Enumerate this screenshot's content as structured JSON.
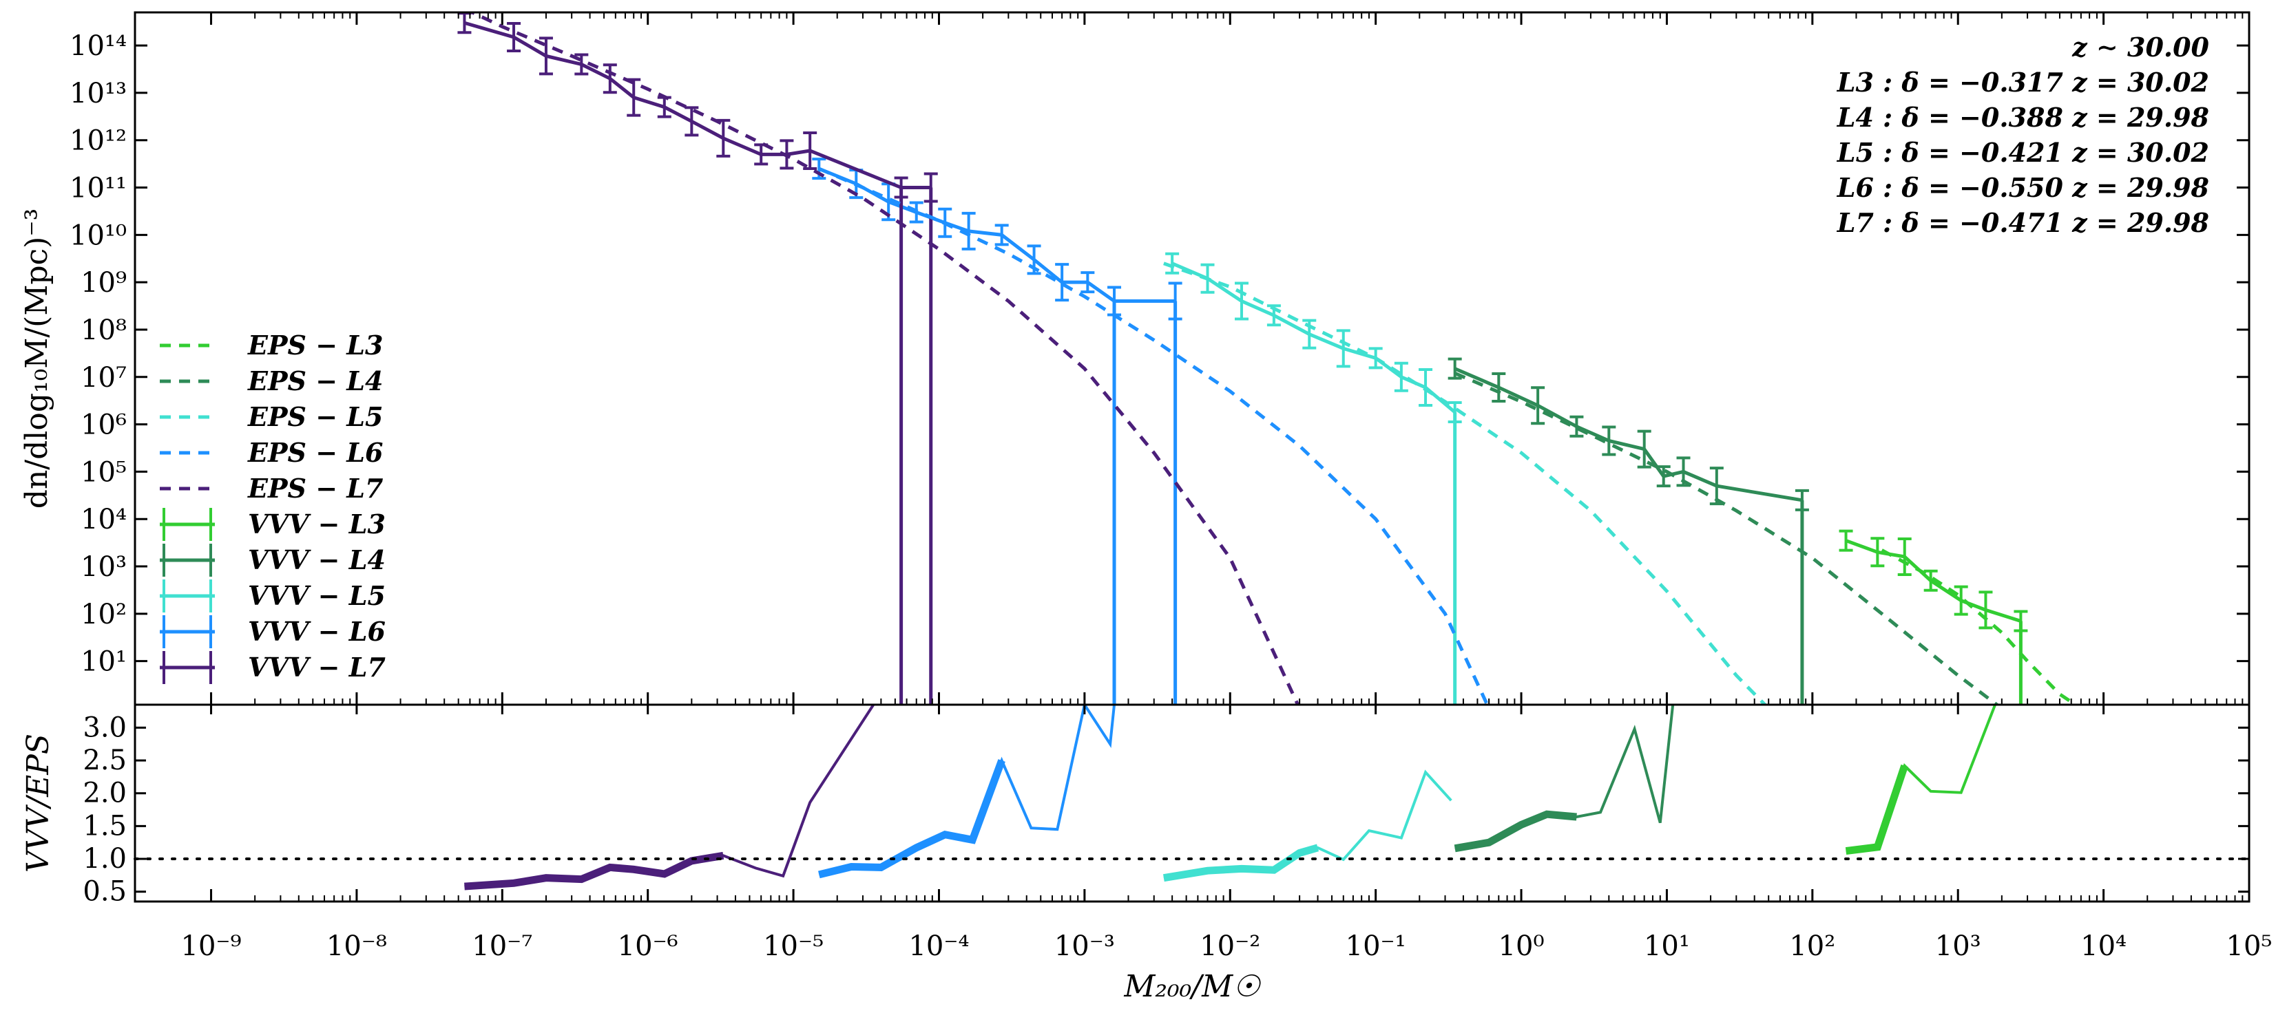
{
  "chart_data": [
    {
      "panel": "main",
      "type": "line",
      "xscale": "log",
      "yscale": "log",
      "xlim": [
        3e-10,
        100000.0
      ],
      "ylim": [
        1.2,
        500000000000000.0
      ],
      "ylabel": "dn/dlog₁₀M/(Mpc)⁻³",
      "ytick_exponents": [
        1,
        2,
        3,
        4,
        5,
        6,
        7,
        8,
        9,
        10,
        11,
        12,
        13,
        14
      ],
      "annotations": [
        "z ∼ 30.00",
        "L3 :  δ = −0.317  z = 30.02",
        "L4 :  δ = −0.388  z = 29.98",
        "L5 :  δ = −0.421  z = 30.02",
        "L6 :  δ = −0.550  z = 29.98",
        "L7 :  δ = −0.471  z = 29.98"
      ],
      "legend": {
        "placement": "left",
        "eps_entries": [
          "EPS − L3",
          "EPS − L4",
          "EPS − L5",
          "EPS − L6",
          "EPS − L7"
        ],
        "vvv_entries": [
          "VVV − L3",
          "VVV − L4",
          "VVV − L5",
          "VVV − L6",
          "VVV − L7"
        ]
      },
      "series": [
        {
          "name": "VVV − L3",
          "color": "#32cd32",
          "style": "solid-errorbar",
          "x": [
            170,
            280,
            430,
            650,
            1050,
            1550,
            2700
          ],
          "y": [
            3500.0,
            2000.0,
            1600.0,
            500.0,
            190.0,
            120.0,
            70
          ],
          "drop_to_floor": [
            2700
          ]
        },
        {
          "name": "VVV − L4",
          "color": "#2e8b57",
          "style": "solid-errorbar",
          "x": [
            0.35,
            0.7,
            1.3,
            2.4,
            4.0,
            7.0,
            9.5,
            13,
            22,
            85
          ],
          "y": [
            15000000.0,
            6000000.0,
            2500000.0,
            900000.0,
            450000.0,
            300000.0,
            80000.0,
            100000.0,
            50000.0,
            25000.0
          ],
          "drop_to_floor": [
            85
          ]
        },
        {
          "name": "VVV − L5",
          "color": "#40e0d0",
          "style": "solid-errorbar",
          "x": [
            0.004,
            0.007,
            0.012,
            0.02,
            0.035,
            0.06,
            0.1,
            0.15,
            0.22,
            0.35
          ],
          "y": [
            2500000000.0,
            1200000000.0,
            400000000.0,
            200000000.0,
            80000000.0,
            40000000.0,
            25000000.0,
            10000000.0,
            6000000.0,
            1800000.0
          ],
          "drop_to_floor": [
            0.35
          ]
        },
        {
          "name": "VVV − L6",
          "color": "#1e90ff",
          "style": "solid-errorbar",
          "x": [
            1.5e-05,
            2.7e-05,
            4.5e-05,
            7e-05,
            0.00011,
            0.00016,
            0.00027,
            0.00045,
            0.0007,
            0.00105,
            0.0016,
            0.0042
          ],
          "y": [
            250000000000.0,
            120000000000.0,
            50000000000.0,
            30000000000.0,
            18000000000.0,
            12000000000.0,
            10000000000.0,
            3000000000.0,
            1000000000.0,
            1000000000.0,
            400000000.0,
            400000000.0
          ],
          "drop_to_floor": [
            0.0016,
            0.0042
          ]
        },
        {
          "name": "VVV − L7",
          "color": "#4b1f7a",
          "style": "solid-errorbar",
          "x": [
            5.5e-08,
            1.2e-07,
            2e-07,
            3.5e-07,
            5.5e-07,
            8e-07,
            1.3e-06,
            2e-06,
            3.3e-06,
            6e-06,
            9e-06,
            1.3e-05,
            5.5e-05,
            8.8e-05
          ],
          "y": [
            300000000000000.0,
            150000000000000.0,
            60000000000000.0,
            40000000000000.0,
            20000000000000.0,
            8000000000000.0,
            5000000000000.0,
            2500000000000.0,
            1100000000000.0,
            500000000000.0,
            500000000000.0,
            600000000000.0,
            100000000000.0,
            100000000000.0
          ],
          "drop_to_floor": [
            5.5e-05,
            8.8e-05
          ]
        },
        {
          "name": "EPS − L3",
          "color": "#32cd32",
          "style": "dashed",
          "x": [
            300,
            600,
            1000,
            2000,
            3000,
            5000,
            7000
          ],
          "y": [
            2200.0,
            700.0,
            250.0,
            40,
            10,
            2.0,
            1.0
          ]
        },
        {
          "name": "EPS − L4",
          "color": "#2e8b57",
          "style": "dashed",
          "x": [
            0.35,
            1,
            3,
            10,
            30,
            100,
            300,
            1000,
            2000
          ],
          "y": [
            12000000.0,
            3000000.0,
            600000.0,
            100000.0,
            15000.0,
            1500.0,
            100.0,
            5.0,
            1.0
          ]
        },
        {
          "name": "EPS − L5",
          "color": "#40e0d0",
          "style": "dashed",
          "x": [
            0.0035,
            0.01,
            0.03,
            0.1,
            0.3,
            1,
            3,
            10,
            30,
            50
          ],
          "y": [
            2500000000.0,
            800000000.0,
            150000000.0,
            25000000.0,
            3000000.0,
            250000.0,
            15000.0,
            300.0,
            5.0,
            1.0
          ]
        },
        {
          "name": "EPS − L6",
          "color": "#1e90ff",
          "style": "dashed",
          "x": [
            1.5e-05,
            3e-05,
            0.0001,
            0.0003,
            0.001,
            0.003,
            0.01,
            0.03,
            0.1,
            0.3,
            0.6
          ],
          "y": [
            250000000000.0,
            100000000000.0,
            20000000000.0,
            4000000000.0,
            500000000.0,
            60000000.0,
            5000000.0,
            350000.0,
            10000.0,
            100.0,
            1.0
          ]
        },
        {
          "name": "EPS − L7",
          "color": "#4b1f7a",
          "style": "dashed",
          "x": [
            5.5e-08,
            1e-07,
            3e-07,
            1e-06,
            3e-06,
            1e-05,
            3e-05,
            0.0001,
            0.0003,
            0.001,
            0.003,
            0.01,
            0.03
          ],
          "y": [
            600000000000000.0,
            250000000000000.0,
            60000000000000.0,
            12000000000000.0,
            2500000000000.0,
            400000000000.0,
            60000000000.0,
            5000000000.0,
            400000000.0,
            15000000.0,
            250000.0,
            1500.0,
            1.0
          ]
        }
      ]
    },
    {
      "panel": "ratio",
      "type": "line",
      "xscale": "log",
      "ylim": [
        0.35,
        3.35
      ],
      "ylabel": "VVV/EPS",
      "yticks": [
        "0.5",
        "1.0",
        "1.5",
        "2.0",
        "2.5",
        "3.0"
      ],
      "xlabel": "M₂₀₀/M☉",
      "xtick_exponents": [
        -9,
        -8,
        -7,
        -6,
        -5,
        -4,
        -3,
        -2,
        -1,
        0,
        1,
        2,
        3,
        4,
        5
      ],
      "reference_line": 1.0,
      "series": [
        {
          "name": "L7",
          "color": "#4b1f7a",
          "x": [
            5.5e-08,
            1.2e-07,
            2e-07,
            3.5e-07,
            5.5e-07,
            8e-07,
            1.3e-06,
            2e-06,
            3.3e-06,
            5.5e-06,
            8.5e-06,
            1.3e-05,
            4.2e-05
          ],
          "y": [
            0.58,
            0.63,
            0.71,
            0.69,
            0.87,
            0.84,
            0.77,
            0.97,
            1.05,
            0.86,
            0.74,
            1.86,
            3.6
          ],
          "thick_until_x": 3.3e-06
        },
        {
          "name": "L6",
          "color": "#1e90ff",
          "x": [
            1.5e-05,
            2.5e-05,
            4e-05,
            7e-05,
            0.00011,
            0.00017,
            0.00027,
            0.00043,
            0.00065,
            0.001,
            0.0015,
            0.0016
          ],
          "y": [
            0.76,
            0.88,
            0.87,
            1.17,
            1.37,
            1.29,
            2.5,
            1.47,
            1.45,
            3.35,
            2.75,
            3.35
          ],
          "thick_until_x": 0.00027
        },
        {
          "name": "L5",
          "color": "#40e0d0",
          "x": [
            0.0035,
            0.007,
            0.012,
            0.02,
            0.03,
            0.04,
            0.06,
            0.09,
            0.15,
            0.22,
            0.33
          ],
          "y": [
            0.71,
            0.82,
            0.85,
            0.83,
            1.09,
            1.17,
            0.99,
            1.43,
            1.32,
            2.32,
            1.89
          ],
          "thick_until_x": 0.04
        },
        {
          "name": "L4",
          "color": "#2e8b57",
          "x": [
            0.35,
            0.6,
            1.0,
            1.5,
            2.4,
            3.5,
            6.0,
            9.0,
            11.0
          ],
          "y": [
            1.16,
            1.25,
            1.52,
            1.68,
            1.64,
            1.71,
            2.98,
            1.55,
            3.35
          ],
          "thick_until_x": 2.4
        },
        {
          "name": "L3",
          "color": "#32cd32",
          "x": [
            170,
            280,
            430,
            650,
            1050,
            1800
          ],
          "y": [
            1.12,
            1.18,
            2.42,
            2.03,
            2.01,
            3.35
          ],
          "thick_until_x": 430
        }
      ]
    }
  ]
}
